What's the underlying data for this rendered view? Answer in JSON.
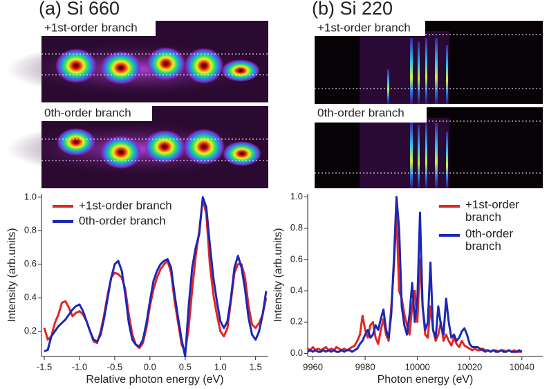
{
  "chart_data": [
    {
      "type": "line",
      "title": "(a) Si 660",
      "image_labels": [
        "+1st-order branch",
        "0th-order branch"
      ],
      "xlabel": "Relative photon energy (eV)",
      "ylabel": "Intensity (arb.units)",
      "xlim": [
        -1.54,
        1.68
      ],
      "xticks": [
        -1.5,
        {
          "value": -1,
          "label": "-1.0"
        },
        -0.5,
        {
          "value": 0,
          "label": "0.0"
        },
        0.5,
        {
          "value": 1,
          "label": "1.0"
        },
        1.5
      ],
      "ylim": [
        0.05,
        1.02
      ],
      "yticks": [
        0.2,
        0.4,
        0.6,
        0.8,
        {
          "value": 1,
          "label": "1.0"
        }
      ],
      "legend": "top-left",
      "x": [
        -1.5,
        -1.45,
        -1.4,
        -1.35,
        -1.3,
        -1.25,
        -1.2,
        -1.15,
        -1.1,
        -1.05,
        -1.0,
        -0.95,
        -0.9,
        -0.85,
        -0.8,
        -0.75,
        -0.7,
        -0.65,
        -0.6,
        -0.55,
        -0.5,
        -0.45,
        -0.4,
        -0.35,
        -0.3,
        -0.25,
        -0.2,
        -0.15,
        -0.1,
        -0.05,
        0,
        0.05,
        0.1,
        0.15,
        0.2,
        0.25,
        0.3,
        0.35,
        0.4,
        0.45,
        0.5,
        0.55,
        0.6,
        0.65,
        0.7,
        0.75,
        0.8,
        0.85,
        0.9,
        0.95,
        1.0,
        1.05,
        1.1,
        1.15,
        1.2,
        1.25,
        1.3,
        1.35,
        1.4,
        1.45,
        1.5,
        1.55,
        1.6,
        1.65
      ],
      "series": [
        {
          "name": "+1st-order branch",
          "color": "#e52421",
          "values": [
            0.22,
            0.15,
            0.17,
            0.25,
            0.3,
            0.37,
            0.38,
            0.34,
            0.29,
            0.31,
            0.32,
            0.3,
            0.26,
            0.2,
            0.14,
            0.13,
            0.2,
            0.3,
            0.42,
            0.52,
            0.55,
            0.54,
            0.52,
            0.45,
            0.3,
            0.18,
            0.12,
            0.1,
            0.13,
            0.22,
            0.35,
            0.45,
            0.52,
            0.57,
            0.6,
            0.62,
            0.55,
            0.38,
            0.25,
            0.12,
            0.08,
            0.22,
            0.45,
            0.65,
            0.8,
            0.99,
            0.9,
            0.6,
            0.42,
            0.3,
            0.2,
            0.17,
            0.22,
            0.38,
            0.55,
            0.6,
            0.6,
            0.52,
            0.35,
            0.24,
            0.22,
            0.25,
            0.3,
            0.4
          ]
        },
        {
          "name": "0th-order branch",
          "color": "#1a28b4",
          "values": [
            0.08,
            0.09,
            0.17,
            0.2,
            0.23,
            0.25,
            0.27,
            0.3,
            0.33,
            0.35,
            0.36,
            0.32,
            0.26,
            0.2,
            0.15,
            0.14,
            0.18,
            0.28,
            0.4,
            0.52,
            0.6,
            0.62,
            0.56,
            0.42,
            0.25,
            0.15,
            0.12,
            0.11,
            0.15,
            0.25,
            0.38,
            0.5,
            0.56,
            0.6,
            0.62,
            0.63,
            0.58,
            0.42,
            0.28,
            0.15,
            0.05,
            0.35,
            0.58,
            0.7,
            0.78,
            1.0,
            0.94,
            0.72,
            0.52,
            0.38,
            0.26,
            0.22,
            0.26,
            0.4,
            0.58,
            0.65,
            0.58,
            0.45,
            0.28,
            0.18,
            0.15,
            0.2,
            0.3,
            0.44
          ]
        }
      ]
    },
    {
      "type": "line",
      "title": "(b) Si 220",
      "image_labels": [
        "+1st-order branch",
        "0th-order branch"
      ],
      "xlabel": "Photon energy (eV)",
      "ylabel": "Intensity (arb.units)",
      "xlim": [
        9958,
        10048
      ],
      "xticks": [
        9960,
        9980,
        10000,
        10020,
        10040
      ],
      "ylim": [
        -0.02,
        1.02
      ],
      "yticks": [
        {
          "value": 0,
          "label": "0.0"
        },
        0.2,
        0.4,
        0.6,
        0.8,
        {
          "value": 1,
          "label": "1.0"
        }
      ],
      "legend": "top-right",
      "x": [
        9958,
        9959,
        9960,
        9961,
        9962,
        9963,
        9964,
        9965,
        9966,
        9967,
        9968,
        9969,
        9970,
        9971,
        9972,
        9973,
        9974,
        9975,
        9976,
        9977,
        9978,
        9979,
        9980,
        9981,
        9982,
        9983,
        9984,
        9985,
        9986,
        9987,
        9988,
        9989,
        9990,
        9991,
        9992,
        9993,
        9994,
        9995,
        9996,
        9997,
        9998,
        9999,
        10000,
        10001,
        10002,
        10003,
        10004,
        10005,
        10006,
        10007,
        10008,
        10009,
        10010,
        10011,
        10012,
        10013,
        10014,
        10015,
        10016,
        10017,
        10018,
        10019,
        10020,
        10021,
        10022,
        10023,
        10024,
        10025,
        10026,
        10027,
        10028,
        10029,
        10030,
        10031,
        10032,
        10033,
        10034,
        10035,
        10036,
        10037,
        10038,
        10039,
        10040
      ],
      "series": [
        {
          "name": "+1st-order branch",
          "color": "#e52421",
          "values": [
            0.03,
            0.02,
            0.04,
            0.02,
            0.03,
            0.02,
            0.03,
            0.04,
            0.02,
            0.03,
            0.02,
            0.04,
            0.03,
            0.02,
            0.03,
            0.02,
            0.03,
            0.04,
            0.05,
            0.08,
            0.12,
            0.24,
            0.15,
            0.1,
            0.18,
            0.2,
            0.1,
            0.06,
            0.15,
            0.22,
            0.12,
            0.08,
            0.3,
            0.55,
            0.9,
            0.4,
            0.35,
            0.25,
            0.18,
            0.12,
            0.3,
            0.4,
            0.2,
            0.6,
            0.3,
            0.12,
            0.1,
            0.3,
            0.15,
            0.08,
            0.12,
            0.2,
            0.08,
            0.12,
            0.08,
            0.05,
            0.1,
            0.06,
            0.04,
            0.08,
            0.05,
            0.04,
            0.03,
            0.02,
            0.03,
            0.02,
            0.02,
            0.03,
            0.02,
            0.02,
            0.01,
            0.02,
            0.02,
            0.01,
            0.02,
            0.02,
            0.01,
            0.02,
            0.01,
            0.02,
            0.01,
            0.01,
            0.01
          ]
        },
        {
          "name": "0th-order branch",
          "color": "#1a28b4",
          "values": [
            0.01,
            0.02,
            0.01,
            0.02,
            0.01,
            0.01,
            0.02,
            0.01,
            0.02,
            0.01,
            0.02,
            0.01,
            0.01,
            0.02,
            0.01,
            0.02,
            0.02,
            0.01,
            0.02,
            0.03,
            0.06,
            0.08,
            0.12,
            0.15,
            0.1,
            0.12,
            0.18,
            0.15,
            0.22,
            0.28,
            0.15,
            0.1,
            0.25,
            0.6,
            1.0,
            0.8,
            0.3,
            0.18,
            0.12,
            0.25,
            0.45,
            0.2,
            0.35,
            0.9,
            0.3,
            0.15,
            0.2,
            0.58,
            0.15,
            0.1,
            0.3,
            0.18,
            0.12,
            0.35,
            0.2,
            0.1,
            0.12,
            0.08,
            0.1,
            0.14,
            0.16,
            0.12,
            0.06,
            0.04,
            0.04,
            0.04,
            0.03,
            0.02,
            0.01,
            0.02,
            0.01,
            0.02,
            0.01,
            0.01,
            0.02,
            0.01,
            0.01,
            0.02,
            0.01,
            0.01,
            0.01,
            0.02,
            0.01
          ]
        }
      ]
    }
  ]
}
